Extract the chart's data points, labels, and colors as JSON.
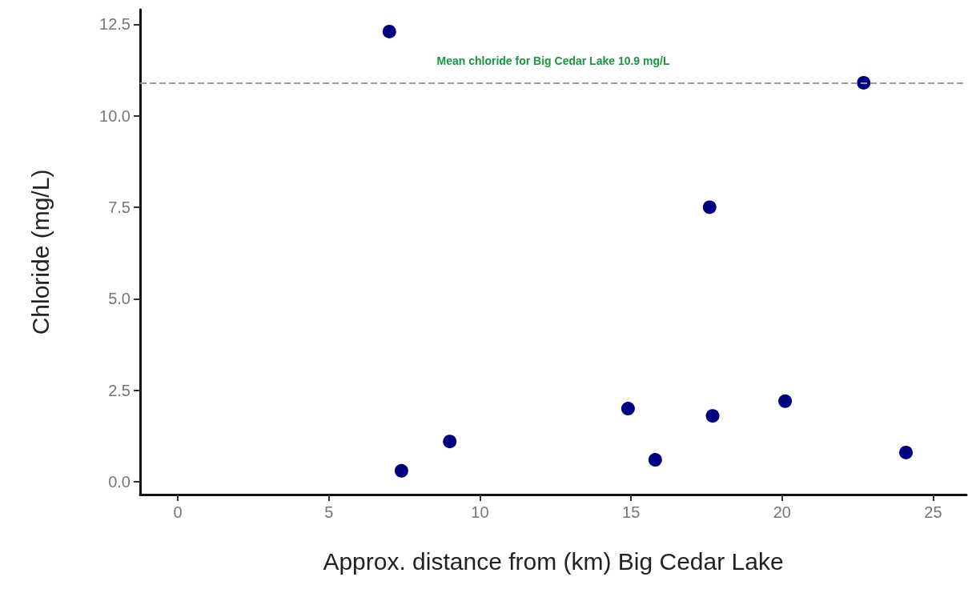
{
  "chart_data": {
    "type": "scatter",
    "xlabel": "Approx. distance from (km) Big Cedar Lake",
    "ylabel": "Chloride (mg/L)",
    "x": [
      7.0,
      22.7,
      17.6,
      7.4,
      9.0,
      14.9,
      15.8,
      17.7,
      20.1,
      24.1
    ],
    "series": [
      {
        "color": "#000080",
        "values": [
          12.3,
          10.9,
          7.5,
          0.3,
          1.1,
          2.0,
          0.6,
          1.8,
          2.2,
          0.8
        ]
      }
    ],
    "xlim": [
      -1.25,
      26.1
    ],
    "xticks": [
      0,
      5,
      10,
      15,
      20,
      25
    ],
    "ylim": [
      -0.35,
      12.9
    ],
    "yticks": [
      {
        "value": 0,
        "label": "0.0"
      },
      {
        "value": 2.5,
        "label": "2.5"
      },
      {
        "value": 5,
        "label": "5.0"
      },
      {
        "value": 7.5,
        "label": "7.5"
      },
      {
        "value": 10,
        "label": "10.0"
      },
      {
        "value": 12.5,
        "label": "12.5"
      }
    ],
    "ref_lines": [
      {
        "axis": "y",
        "value": 10.9,
        "color": "#999999",
        "line_style": "dashed",
        "label": "Mean chloride for Big Cedar Lake 10.9 mg/L"
      }
    ],
    "grid": false,
    "marker": "circle"
  }
}
